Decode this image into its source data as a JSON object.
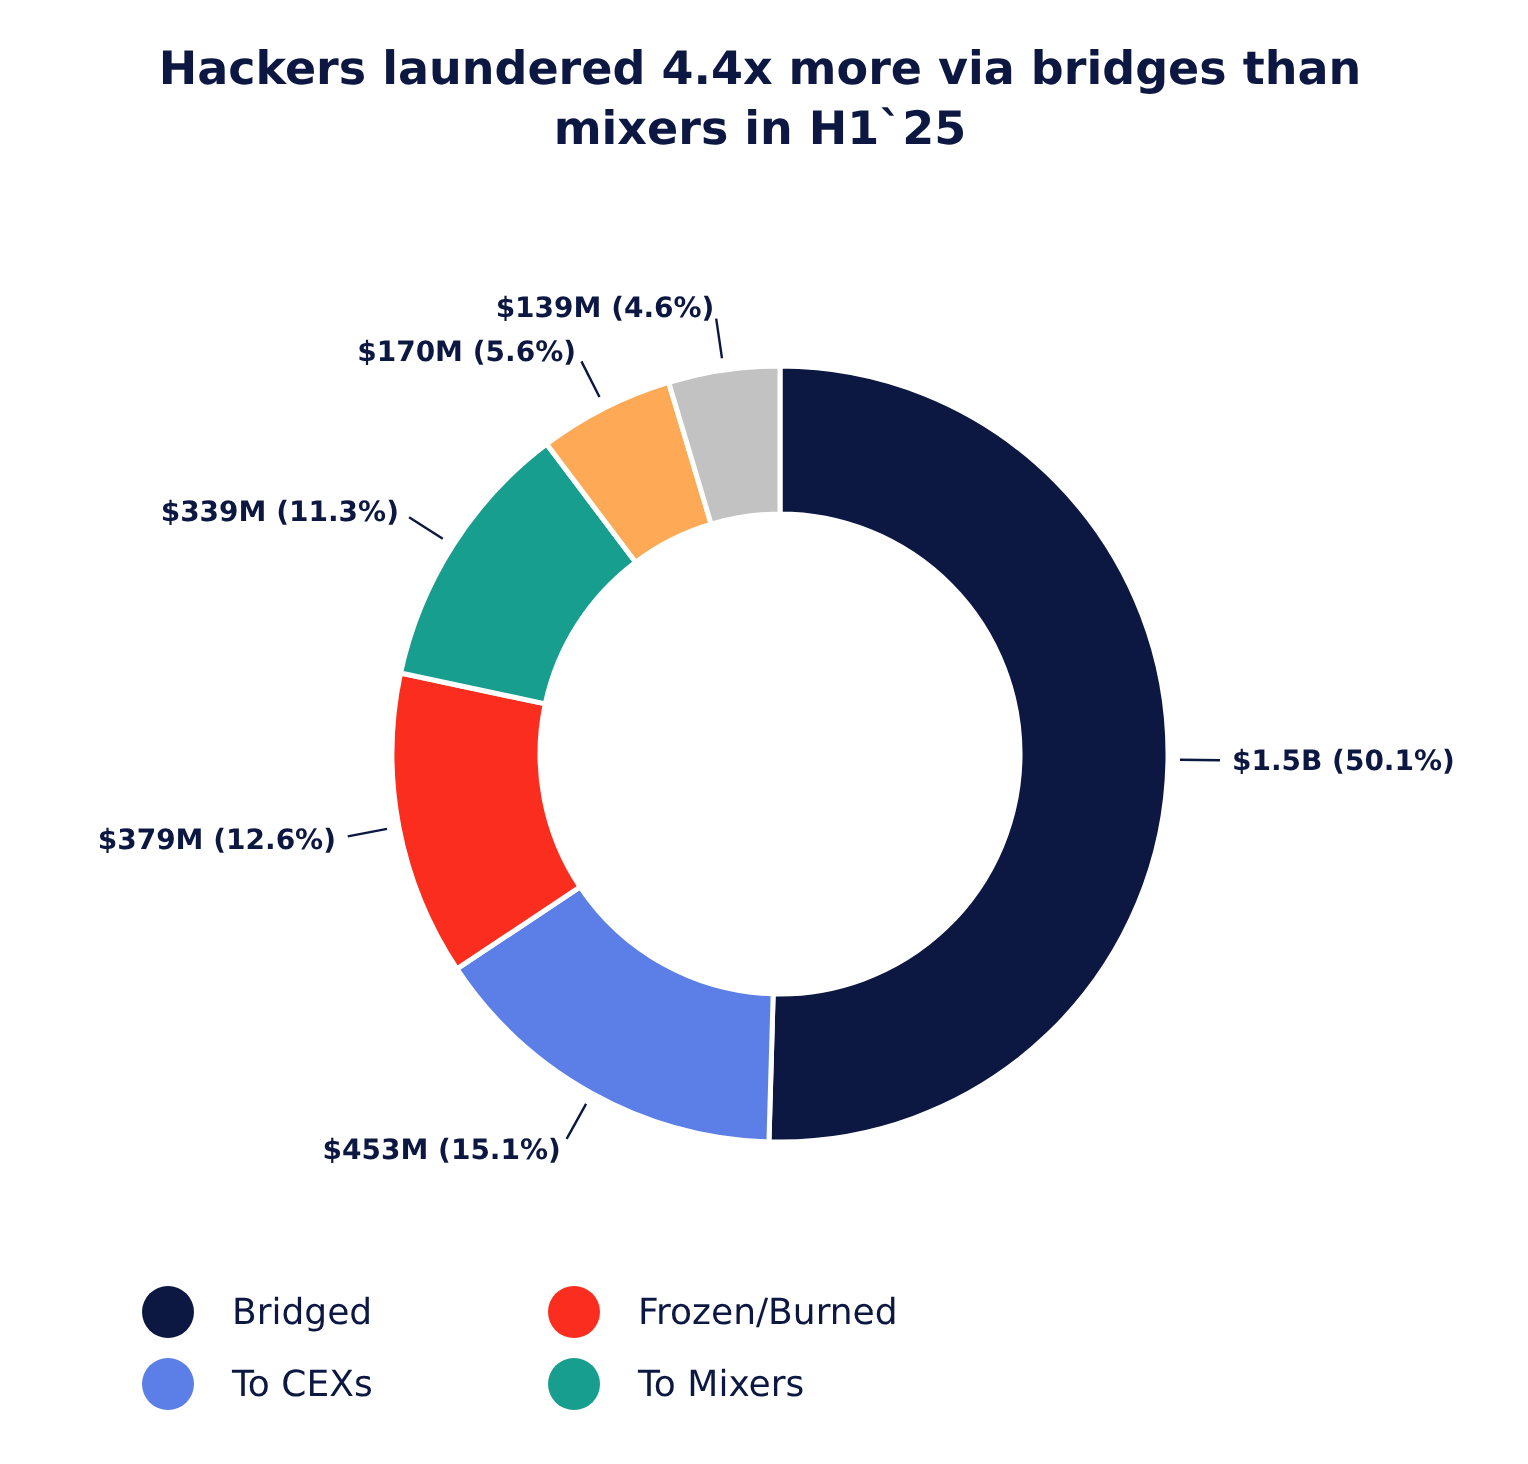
{
  "chart_data": {
    "type": "donut",
    "title": "Hackers laundered 4.4x more via bridges than mixers in H1`25",
    "categories": [
      "Bridged",
      "To CEXs",
      "Frozen/Burned",
      "To Mixers",
      null,
      null
    ],
    "values": [
      50.1,
      15.1,
      12.6,
      11.3,
      5.6,
      4.6
    ],
    "value_labels": [
      "$1.5B (50.1%)",
      "$453M (15.1%)",
      "$379M (12.6%)",
      "$339M (11.3%)",
      "$170M (5.6%)",
      "$139M (4.6%)"
    ],
    "colors": [
      "#0c1842",
      "#5b7fe6",
      "#fb2d1f",
      "#179e8e",
      "#fda955",
      "#c2c2c2"
    ],
    "legend": "bottom"
  }
}
